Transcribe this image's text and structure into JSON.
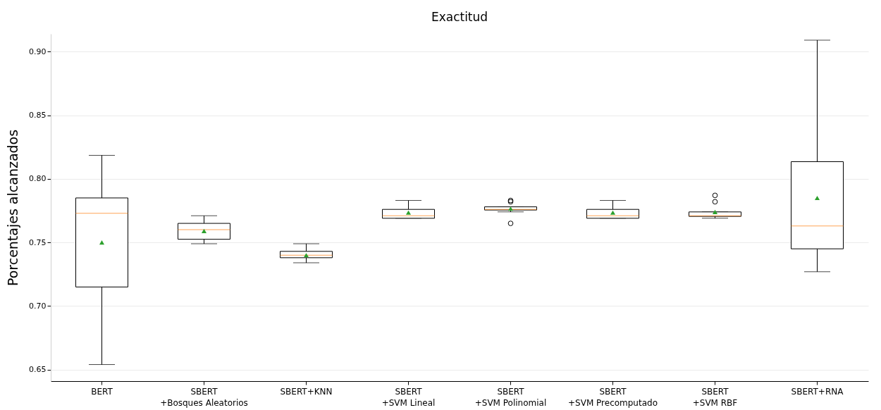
{
  "chart_data": {
    "type": "box",
    "title": "Exactitud",
    "ylabel": "Porcentajes alcanzados",
    "categories": [
      "BERT",
      "SBERT\n+Bosques Aleatorios",
      "SBERT+KNN",
      "SBERT\n+SVM Lineal",
      "SBERT\n+SVM Polinomial",
      "SBERT\n+SVM Precomputado",
      "SBERT\n+SVM RBF",
      "SBERT+RNA"
    ],
    "boxes": [
      {
        "low": 0.654,
        "q1": 0.715,
        "median": 0.773,
        "q3": 0.785,
        "high": 0.8185,
        "mean": 0.75
      },
      {
        "low": 0.749,
        "q1": 0.7525,
        "median": 0.76,
        "q3": 0.765,
        "high": 0.771,
        "mean": 0.759
      },
      {
        "low": 0.734,
        "q1": 0.738,
        "median": 0.74,
        "q3": 0.743,
        "high": 0.749,
        "mean": 0.74
      },
      {
        "low": 0.769,
        "q1": 0.769,
        "median": 0.771,
        "q3": 0.776,
        "high": 0.783,
        "mean": 0.7735
      },
      {
        "low": 0.774,
        "q1": 0.7755,
        "median": 0.776,
        "q3": 0.778,
        "high": 0.778,
        "mean": 0.7765,
        "outliers": [
          0.765,
          0.782,
          0.783
        ]
      },
      {
        "low": 0.769,
        "q1": 0.769,
        "median": 0.771,
        "q3": 0.776,
        "high": 0.783,
        "mean": 0.7735
      },
      {
        "low": 0.769,
        "q1": 0.7705,
        "median": 0.771,
        "q3": 0.774,
        "high": 0.774,
        "mean": 0.774,
        "outliers": [
          0.782,
          0.787
        ]
      },
      {
        "low": 0.727,
        "q1": 0.745,
        "median": 0.763,
        "q3": 0.8135,
        "high": 0.909,
        "mean": 0.785
      }
    ],
    "ylim": [
      0.641,
      0.914
    ],
    "yticks": [
      {
        "value": 0.65,
        "label": "0.65"
      },
      {
        "value": 0.7,
        "label": "0.70"
      },
      {
        "value": 0.75,
        "label": "0.75"
      },
      {
        "value": 0.8,
        "label": "0.80"
      },
      {
        "value": 0.85,
        "label": "0.85"
      },
      {
        "value": 0.9,
        "label": "0.90"
      }
    ],
    "grid": "y"
  }
}
